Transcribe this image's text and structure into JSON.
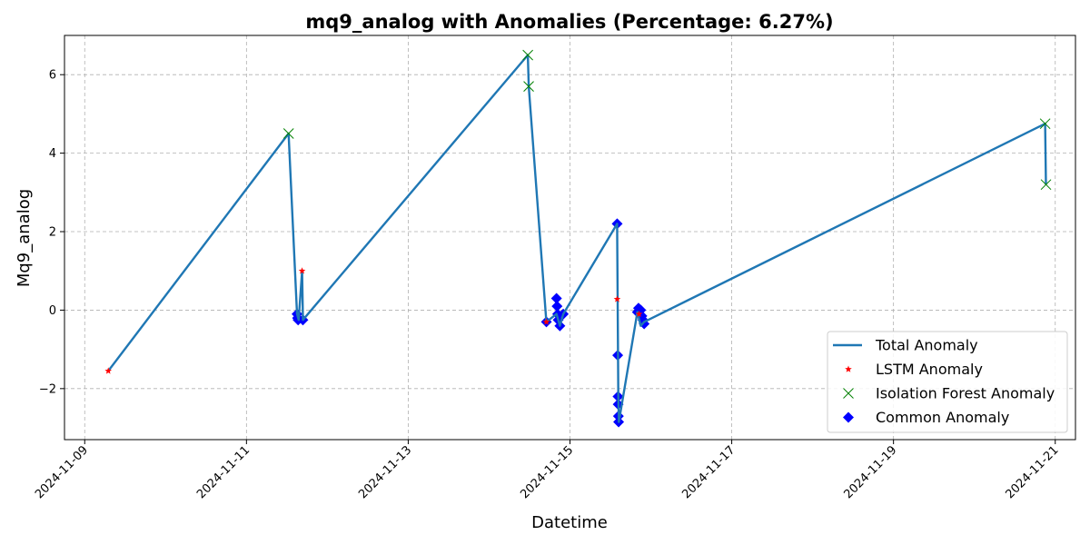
{
  "chart_data": {
    "type": "line",
    "title": "mq9_analog with Anomalies (Percentage: 6.27%)",
    "xlabel": "Datetime",
    "ylabel": "Mq9_analog",
    "x_range": [
      "2024-11-08T18:00",
      "2024-11-21T06:00"
    ],
    "ylim": [
      -3.3,
      7.0
    ],
    "x_ticks": [
      "2024-11-09",
      "2024-11-11",
      "2024-11-13",
      "2024-11-15",
      "2024-11-17",
      "2024-11-19",
      "2024-11-21"
    ],
    "y_ticks": [
      -2,
      0,
      2,
      4,
      6
    ],
    "y_tick_labels": [
      "−2",
      "0",
      "2",
      "4",
      "6"
    ],
    "grid": true,
    "legend_position": "lower-right",
    "series": [
      {
        "name": "Total Anomaly",
        "style": "line",
        "color": "#1f77b4",
        "points": [
          [
            "2024-11-09T07:00",
            -1.55
          ],
          [
            "2024-11-11T12:30",
            4.5
          ],
          [
            "2024-11-11T15:00",
            -0.1
          ],
          [
            "2024-11-11T15:30",
            -0.25
          ],
          [
            "2024-11-11T16:30",
            1.0
          ],
          [
            "2024-11-11T16:45",
            -0.25
          ],
          [
            "2024-11-14T11:30",
            6.5
          ],
          [
            "2024-11-14T11:45",
            5.7
          ],
          [
            "2024-11-14T17:00",
            -0.3
          ],
          [
            "2024-11-14T20:00",
            -0.1
          ],
          [
            "2024-11-14T21:00",
            -0.4
          ],
          [
            "2024-11-14T22:00",
            -0.1
          ],
          [
            "2024-11-15T14:00",
            2.2
          ],
          [
            "2024-11-15T14:15",
            -1.15
          ],
          [
            "2024-11-15T14:20",
            -2.2
          ],
          [
            "2024-11-15T14:30",
            -2.85
          ],
          [
            "2024-11-15T20:00",
            -0.05
          ],
          [
            "2024-11-15T21:00",
            -0.4
          ],
          [
            "2024-11-15T22:00",
            -0.3
          ],
          [
            "2024-11-20T21:00",
            4.75
          ],
          [
            "2024-11-20T21:15",
            3.2
          ]
        ]
      },
      {
        "name": "LSTM Anomaly",
        "style": "marker",
        "marker": "star",
        "color": "#ff0000",
        "points": [
          [
            "2024-11-09T07:00",
            -1.55
          ],
          [
            "2024-11-11T16:30",
            1.0
          ],
          [
            "2024-11-15T14:00",
            0.28
          ],
          [
            "2024-11-14T17:00",
            -0.3
          ],
          [
            "2024-11-15T20:30",
            -0.1
          ]
        ]
      },
      {
        "name": "Isolation Forest Anomaly",
        "style": "marker",
        "marker": "x",
        "color": "#008000",
        "points": [
          [
            "2024-11-11T12:30",
            4.5
          ],
          [
            "2024-11-14T11:30",
            6.5
          ],
          [
            "2024-11-14T11:45",
            5.7
          ],
          [
            "2024-11-20T21:00",
            4.75
          ],
          [
            "2024-11-20T21:15",
            3.2
          ]
        ]
      },
      {
        "name": "Common Anomaly",
        "style": "marker",
        "marker": "diamond",
        "color": "#0000ff",
        "points": [
          [
            "2024-11-11T15:00",
            -0.1
          ],
          [
            "2024-11-11T15:10",
            -0.2
          ],
          [
            "2024-11-11T15:20",
            -0.25
          ],
          [
            "2024-11-11T16:45",
            -0.25
          ],
          [
            "2024-11-14T17:00",
            -0.3
          ],
          [
            "2024-11-14T20:00",
            0.3
          ],
          [
            "2024-11-14T20:10",
            0.1
          ],
          [
            "2024-11-14T20:20",
            -0.1
          ],
          [
            "2024-11-14T20:30",
            -0.25
          ],
          [
            "2024-11-14T21:00",
            -0.4
          ],
          [
            "2024-11-14T22:00",
            -0.1
          ],
          [
            "2024-11-15T14:00",
            2.2
          ],
          [
            "2024-11-15T14:10",
            -1.15
          ],
          [
            "2024-11-15T14:15",
            -2.2
          ],
          [
            "2024-11-15T14:18",
            -2.4
          ],
          [
            "2024-11-15T14:22",
            -2.7
          ],
          [
            "2024-11-15T14:26",
            -2.85
          ],
          [
            "2024-11-15T20:00",
            -0.05
          ],
          [
            "2024-11-15T20:20",
            0.05
          ],
          [
            "2024-11-15T21:00",
            0.0
          ],
          [
            "2024-11-15T21:20",
            -0.15
          ],
          [
            "2024-11-15T21:40",
            -0.25
          ],
          [
            "2024-11-15T22:00",
            -0.35
          ]
        ]
      }
    ]
  }
}
